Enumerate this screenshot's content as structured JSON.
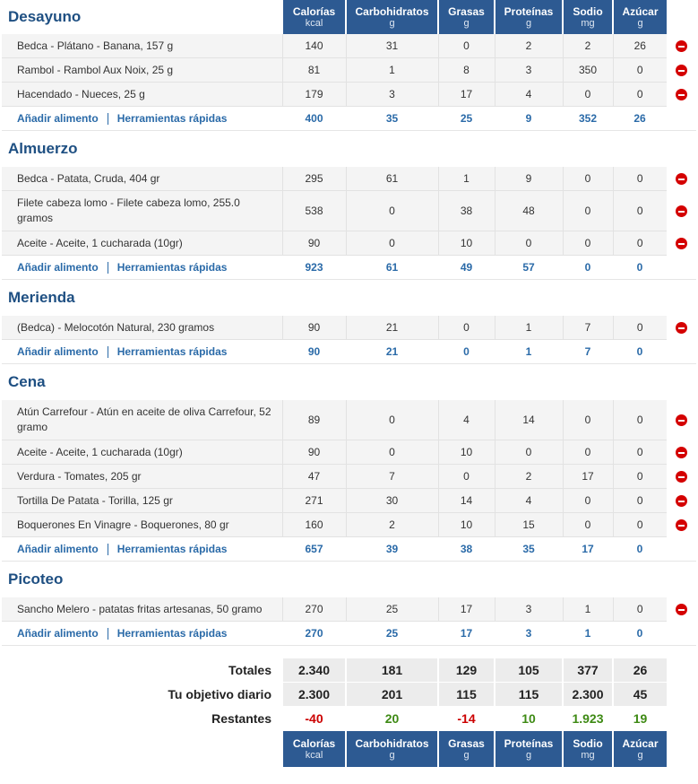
{
  "columns": [
    {
      "name": "Calorías",
      "unit": "kcal"
    },
    {
      "name": "Carbohidratos",
      "unit": "g"
    },
    {
      "name": "Grasas",
      "unit": "g"
    },
    {
      "name": "Proteínas",
      "unit": "g"
    },
    {
      "name": "Sodio",
      "unit": "mg"
    },
    {
      "name": "Azúcar",
      "unit": "g"
    }
  ],
  "links": {
    "add_food": "Añadir alimento",
    "quick_tools": "Herramientas rápidas"
  },
  "meals": [
    {
      "name": "Desayuno",
      "items": [
        {
          "name": "Bedca - Plátano - Banana, 157 g",
          "values": [
            "140",
            "31",
            "0",
            "2",
            "2",
            "26"
          ]
        },
        {
          "name": "Rambol - Rambol Aux Noix, 25 g",
          "values": [
            "81",
            "1",
            "8",
            "3",
            "350",
            "0"
          ]
        },
        {
          "name": "Hacendado - Nueces, 25 g",
          "values": [
            "179",
            "3",
            "17",
            "4",
            "0",
            "0"
          ]
        }
      ],
      "totals": [
        "400",
        "35",
        "25",
        "9",
        "352",
        "26"
      ]
    },
    {
      "name": "Almuerzo",
      "items": [
        {
          "name": "Bedca - Patata, Cruda, 404 gr",
          "values": [
            "295",
            "61",
            "1",
            "9",
            "0",
            "0"
          ]
        },
        {
          "name": "Filete cabeza lomo - Filete cabeza lomo, 255.0 gramos",
          "values": [
            "538",
            "0",
            "38",
            "48",
            "0",
            "0"
          ]
        },
        {
          "name": "Aceite - Aceite, 1 cucharada (10gr)",
          "values": [
            "90",
            "0",
            "10",
            "0",
            "0",
            "0"
          ]
        }
      ],
      "totals": [
        "923",
        "61",
        "49",
        "57",
        "0",
        "0"
      ]
    },
    {
      "name": "Merienda",
      "items": [
        {
          "name": "(Bedca) - Melocotón Natural, 230 gramos",
          "values": [
            "90",
            "21",
            "0",
            "1",
            "7",
            "0"
          ]
        }
      ],
      "totals": [
        "90",
        "21",
        "0",
        "1",
        "7",
        "0"
      ]
    },
    {
      "name": "Cena",
      "items": [
        {
          "name": "Atún Carrefour - Atún en aceite de oliva Carrefour, 52 gramo",
          "values": [
            "89",
            "0",
            "4",
            "14",
            "0",
            "0"
          ]
        },
        {
          "name": "Aceite - Aceite, 1 cucharada (10gr)",
          "values": [
            "90",
            "0",
            "10",
            "0",
            "0",
            "0"
          ]
        },
        {
          "name": "Verdura - Tomates, 205 gr",
          "values": [
            "47",
            "7",
            "0",
            "2",
            "17",
            "0"
          ]
        },
        {
          "name": "Tortilla De Patata - Torilla, 125 gr",
          "values": [
            "271",
            "30",
            "14",
            "4",
            "0",
            "0"
          ]
        },
        {
          "name": "Boquerones En Vinagre - Boquerones, 80 gr",
          "values": [
            "160",
            "2",
            "10",
            "15",
            "0",
            "0"
          ]
        }
      ],
      "totals": [
        "657",
        "39",
        "38",
        "35",
        "17",
        "0"
      ]
    },
    {
      "name": "Picoteo",
      "items": [
        {
          "name": "Sancho Melero - patatas fritas artesanas, 50 gramo",
          "values": [
            "270",
            "25",
            "17",
            "3",
            "1",
            "0"
          ]
        }
      ],
      "totals": [
        "270",
        "25",
        "17",
        "3",
        "1",
        "0"
      ]
    }
  ],
  "summary": {
    "totals_label": "Totales",
    "totals": [
      "2.340",
      "181",
      "129",
      "105",
      "377",
      "26"
    ],
    "goal_label": "Tu objetivo diario",
    "goal": [
      "2.300",
      "201",
      "115",
      "115",
      "2.300",
      "45"
    ],
    "remaining_label": "Restantes",
    "remaining": [
      "-40",
      "20",
      "-14",
      "10",
      "1.923",
      "19"
    ]
  },
  "colors": {
    "header_bg": "#2d5a92",
    "meal_title": "#1e4f82",
    "link": "#2a6aa8",
    "negative": "#cc0000",
    "positive": "#3e8a14",
    "delete": "#d40000"
  }
}
